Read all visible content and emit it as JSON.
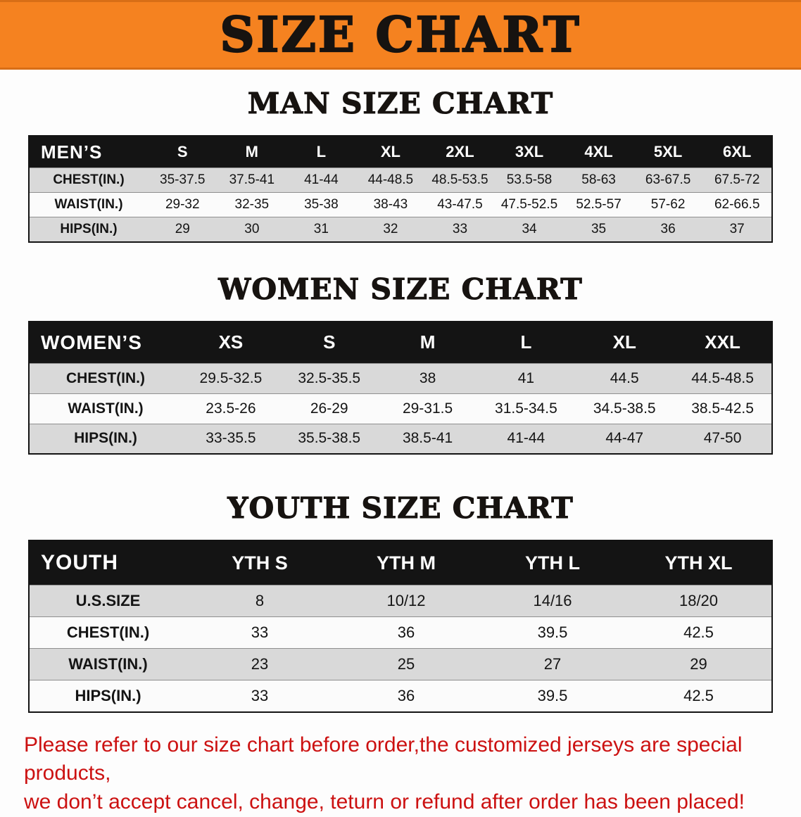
{
  "banner": {
    "title": "SIZE CHART"
  },
  "colors": {
    "banner_bg": "#f58220",
    "title_text": "#171310",
    "header_bg": "#141414",
    "header_text": "#ffffff",
    "row_shade": "#d9d9d9",
    "notice_text": "#cc1111"
  },
  "sections": [
    {
      "id": "men",
      "title": "MAN SIZE CHART",
      "corner_label": "MEN’S",
      "columns": [
        "S",
        "M",
        "L",
        "XL",
        "2XL",
        "3XL",
        "4XL",
        "5XL",
        "6XL"
      ],
      "rows": [
        {
          "label": "CHEST(IN.)",
          "values": [
            "35-37.5",
            "37.5-41",
            "41-44",
            "44-48.5",
            "48.5-53.5",
            "53.5-58",
            "58-63",
            "63-67.5",
            "67.5-72"
          ]
        },
        {
          "label": "WAIST(IN.)",
          "values": [
            "29-32",
            "32-35",
            "35-38",
            "38-43",
            "43-47.5",
            "47.5-52.5",
            "52.5-57",
            "57-62",
            "62-66.5"
          ]
        },
        {
          "label": "HIPS(IN.)",
          "values": [
            "29",
            "30",
            "31",
            "32",
            "33",
            "34",
            "35",
            "36",
            "37"
          ]
        }
      ]
    },
    {
      "id": "women",
      "title": "WOMEN SIZE CHART",
      "corner_label": "WOMEN’S",
      "columns": [
        "XS",
        "S",
        "M",
        "L",
        "XL",
        "XXL"
      ],
      "rows": [
        {
          "label": "CHEST(IN.)",
          "values": [
            "29.5-32.5",
            "32.5-35.5",
            "38",
            "41",
            "44.5",
            "44.5-48.5"
          ]
        },
        {
          "label": "WAIST(IN.)",
          "values": [
            "23.5-26",
            "26-29",
            "29-31.5",
            "31.5-34.5",
            "34.5-38.5",
            "38.5-42.5"
          ]
        },
        {
          "label": "HIPS(IN.)",
          "values": [
            "33-35.5",
            "35.5-38.5",
            "38.5-41",
            "41-44",
            "44-47",
            "47-50"
          ]
        }
      ]
    },
    {
      "id": "youth",
      "title": "YOUTH SIZE CHART",
      "corner_label": "YOUTH",
      "columns": [
        "YTH S",
        "YTH M",
        "YTH L",
        "YTH XL"
      ],
      "rows": [
        {
          "label": "U.S.SIZE",
          "values": [
            "8",
            "10/12",
            "14/16",
            "18/20"
          ]
        },
        {
          "label": "CHEST(IN.)",
          "values": [
            "33",
            "36",
            "39.5",
            "42.5"
          ]
        },
        {
          "label": "WAIST(IN.)",
          "values": [
            "23",
            "25",
            "27",
            "29"
          ]
        },
        {
          "label": "HIPS(IN.)",
          "values": [
            "33",
            "36",
            "39.5",
            "42.5"
          ]
        }
      ]
    }
  ],
  "footer": {
    "lines": [
      "Please refer to our size chart before order,the customized jerseys are special products,",
      "we don’t accept cancel, change, teturn or refund after order has been placed!"
    ]
  }
}
